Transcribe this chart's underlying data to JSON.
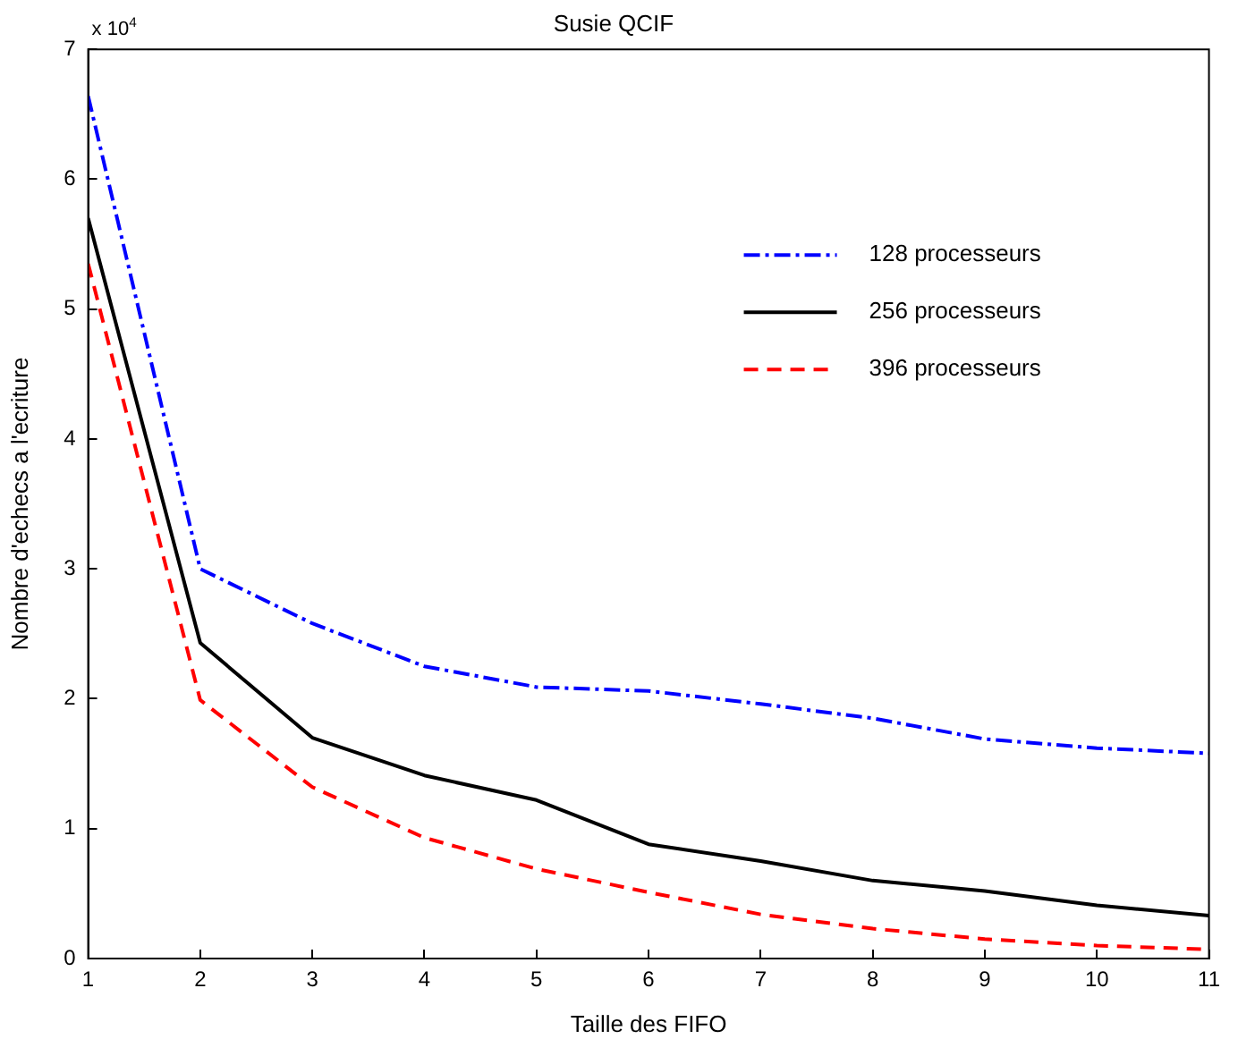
{
  "chart_data": {
    "type": "line",
    "title": "Susie QCIF",
    "xlabel": "Taille des FIFO",
    "ylabel": "Nombre d'echecs a l'ecriture",
    "x": [
      1,
      2,
      3,
      4,
      5,
      6,
      7,
      8,
      9,
      10,
      11
    ],
    "series": [
      {
        "name": "128 processeurs",
        "color": "#0000ff",
        "line_style": "dashdot",
        "values": [
          6.64,
          3.0,
          2.58,
          2.25,
          2.09,
          2.06,
          1.96,
          1.85,
          1.69,
          1.62,
          1.58
        ]
      },
      {
        "name": "256 processeurs",
        "color": "#000000",
        "line_style": "solid",
        "values": [
          5.7,
          2.43,
          1.7,
          1.41,
          1.22,
          0.88,
          0.75,
          0.6,
          0.52,
          0.41,
          0.33
        ]
      },
      {
        "name": "396 processeurs",
        "color": "#ff0000",
        "line_style": "dashed",
        "values": [
          5.35,
          1.99,
          1.32,
          0.93,
          0.69,
          0.51,
          0.34,
          0.23,
          0.15,
          0.1,
          0.07
        ]
      }
    ],
    "xlim": [
      1,
      11
    ],
    "xticks": [
      1,
      2,
      3,
      4,
      5,
      6,
      7,
      8,
      9,
      10,
      11
    ],
    "ylim": [
      0,
      7
    ],
    "yticks": [
      0,
      1,
      2,
      3,
      4,
      5,
      6,
      7
    ],
    "annotations": [
      "x 10$^{4}$"
    ],
    "grid": false,
    "legend": "top right",
    "marker": "none"
  }
}
